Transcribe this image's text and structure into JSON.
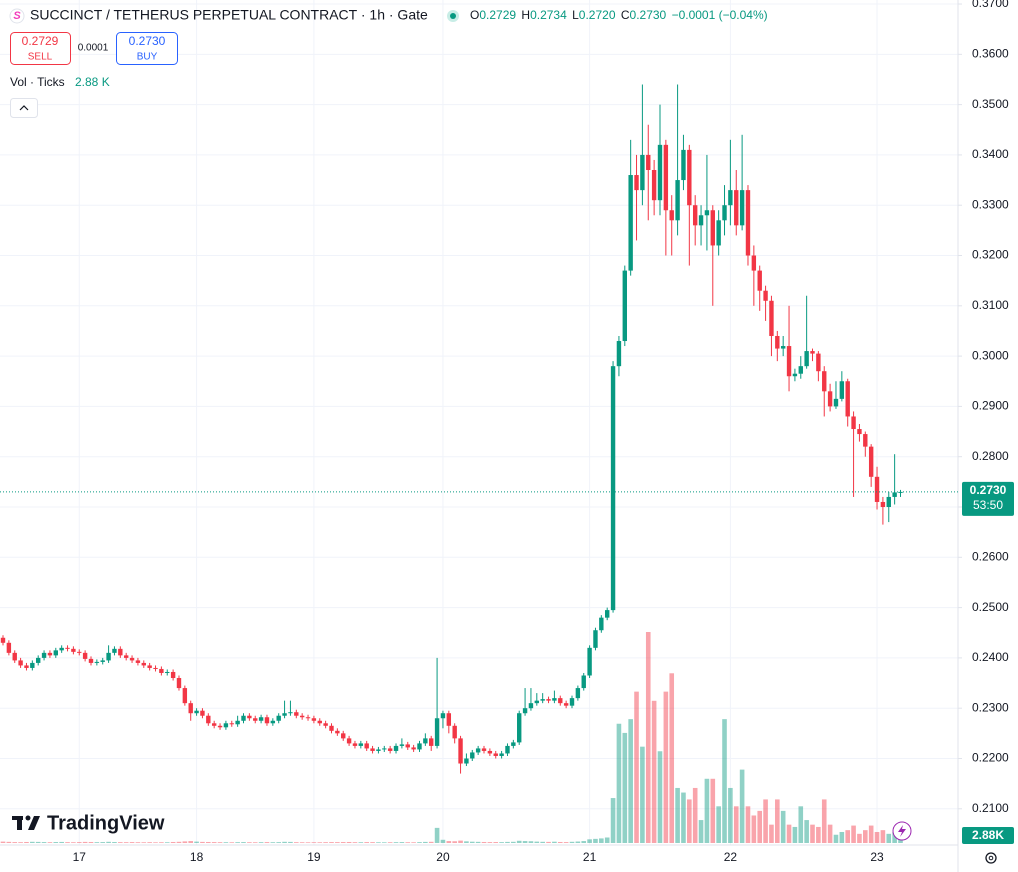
{
  "chart_data": {
    "type": "candlestick",
    "title": "SUCCINCT / TETHERUS PERPETUAL CONTRACT · 1h · Gate",
    "ohlc_legend": [
      {
        "key": "O",
        "value": "0.2729"
      },
      {
        "key": "H",
        "value": "0.2734"
      },
      {
        "key": "L",
        "value": "0.2720"
      },
      {
        "key": "C",
        "value": "0.2730"
      }
    ],
    "change": "−0.0001 (−0.04%)",
    "sell": {
      "price": "0.2729",
      "label": "SELL"
    },
    "spread": "0.0001",
    "buy": {
      "price": "0.2730",
      "label": "BUY"
    },
    "volume_legend": {
      "label": "Vol · Ticks",
      "value": "2.88 K"
    },
    "volume_axis_label": "2.88K",
    "last_price_label": "0.2730",
    "countdown": "53:50",
    "brand": "TradingView",
    "up_color": "#089981",
    "down_color": "#f23645",
    "grid": true,
    "categories": [
      null,
      null,
      null,
      null,
      null,
      null,
      null,
      null,
      null,
      null,
      null,
      null,
      null,
      "17",
      null,
      null,
      null,
      null,
      null,
      null,
      null,
      null,
      null,
      null,
      null,
      null,
      null,
      null,
      null,
      null,
      null,
      null,
      null,
      "18",
      null,
      null,
      null,
      null,
      null,
      null,
      null,
      null,
      null,
      null,
      null,
      null,
      null,
      null,
      null,
      null,
      null,
      null,
      null,
      "19",
      null,
      null,
      null,
      null,
      null,
      null,
      null,
      null,
      null,
      null,
      null,
      null,
      null,
      null,
      null,
      null,
      null,
      null,
      null,
      null,
      null,
      "20",
      null,
      null,
      null,
      null,
      null,
      null,
      null,
      null,
      null,
      null,
      null,
      null,
      null,
      null,
      null,
      null,
      null,
      null,
      null,
      null,
      null,
      null,
      null,
      null,
      "21",
      null,
      null,
      null,
      null,
      null,
      null,
      null,
      null,
      null,
      null,
      null,
      null,
      null,
      null,
      null,
      null,
      null,
      null,
      null,
      null,
      null,
      null,
      null,
      "22",
      null,
      null,
      null,
      null,
      null,
      null,
      null,
      null,
      null,
      null,
      null,
      null,
      null,
      null,
      null,
      null,
      null,
      null,
      null,
      null,
      null,
      null,
      null,
      null,
      "23",
      null,
      null,
      null,
      null
    ],
    "open": [
      0.244,
      0.243,
      0.241,
      0.2395,
      0.2385,
      0.238,
      0.239,
      0.24,
      0.241,
      0.2405,
      0.2415,
      0.242,
      0.2418,
      0.2412,
      0.241,
      0.2398,
      0.239,
      0.2392,
      0.2395,
      0.241,
      0.2418,
      0.2405,
      0.24,
      0.2395,
      0.239,
      0.2385,
      0.238,
      0.2378,
      0.237,
      0.2372,
      0.236,
      0.234,
      0.231,
      0.229,
      0.2295,
      0.2285,
      0.227,
      0.2265,
      0.2262,
      0.227,
      0.2268,
      0.2275,
      0.2285,
      0.228,
      0.2275,
      0.2282,
      0.227,
      0.2275,
      0.2285,
      0.229,
      0.2292,
      0.2285,
      0.2282,
      0.228,
      0.2275,
      0.227,
      0.2265,
      0.2255,
      0.225,
      0.224,
      0.223,
      0.2225,
      0.223,
      0.222,
      0.2215,
      0.2218,
      0.222,
      0.2215,
      0.2225,
      0.2228,
      0.2222,
      0.2218,
      0.223,
      0.224,
      0.2225,
      0.228,
      0.229,
      0.2265,
      0.224,
      0.219,
      0.22,
      0.2212,
      0.222,
      0.2215,
      0.221,
      0.2205,
      0.221,
      0.2225,
      0.2232,
      0.229,
      0.23,
      0.231,
      0.2315,
      0.2318,
      0.2315,
      0.232,
      0.231,
      0.2305,
      0.232,
      0.234,
      0.2365,
      0.242,
      0.2455,
      0.248,
      0.2495,
      0.298,
      0.303,
      0.317,
      0.336,
      0.333,
      0.34,
      0.337,
      0.331,
      0.342,
      0.329,
      0.327,
      0.335,
      0.341,
      0.33,
      0.326,
      0.328,
      0.329,
      0.322,
      0.327,
      0.33,
      0.333,
      0.326,
      0.333,
      0.32,
      0.317,
      0.313,
      0.311,
      0.304,
      0.3015,
      0.302,
      0.296,
      0.2965,
      0.298,
      0.301,
      0.3005,
      0.297,
      0.293,
      0.29,
      0.2915,
      0.295,
      0.288,
      0.2855,
      0.2845,
      0.282,
      0.276,
      0.271,
      0.27,
      0.272,
      0.2729
    ],
    "high": [
      0.2445,
      0.2435,
      0.2415,
      0.24,
      0.239,
      0.2395,
      0.2405,
      0.2415,
      0.2415,
      0.242,
      0.2425,
      0.2425,
      0.2423,
      0.2417,
      0.2415,
      0.2403,
      0.2397,
      0.24,
      0.2425,
      0.2423,
      0.2423,
      0.241,
      0.2405,
      0.24,
      0.2395,
      0.239,
      0.2385,
      0.2383,
      0.2377,
      0.2377,
      0.2365,
      0.2345,
      0.2315,
      0.23,
      0.23,
      0.229,
      0.2275,
      0.227,
      0.2275,
      0.2275,
      0.2285,
      0.229,
      0.229,
      0.2285,
      0.2287,
      0.2287,
      0.228,
      0.229,
      0.2315,
      0.2315,
      0.2297,
      0.229,
      0.2287,
      0.2285,
      0.228,
      0.2275,
      0.227,
      0.226,
      0.2255,
      0.2245,
      0.2235,
      0.2235,
      0.2235,
      0.2225,
      0.2223,
      0.2225,
      0.2225,
      0.223,
      0.224,
      0.2233,
      0.2227,
      0.2235,
      0.225,
      0.2245,
      0.24,
      0.2295,
      0.2295,
      0.227,
      0.2245,
      0.221,
      0.2217,
      0.2225,
      0.2225,
      0.222,
      0.2215,
      0.2215,
      0.223,
      0.2237,
      0.2295,
      0.234,
      0.234,
      0.233,
      0.233,
      0.2323,
      0.2335,
      0.2325,
      0.2315,
      0.2325,
      0.2345,
      0.237,
      0.2425,
      0.246,
      0.2485,
      0.25,
      0.299,
      0.304,
      0.318,
      0.343,
      0.34,
      0.354,
      0.346,
      0.339,
      0.35,
      0.343,
      0.332,
      0.354,
      0.344,
      0.342,
      0.332,
      0.33,
      0.34,
      0.33,
      0.329,
      0.334,
      0.343,
      0.337,
      0.344,
      0.334,
      0.322,
      0.318,
      0.314,
      0.312,
      0.305,
      0.304,
      0.31,
      0.2975,
      0.3,
      0.312,
      0.3015,
      0.301,
      0.298,
      0.2945,
      0.295,
      0.297,
      0.2955,
      0.289,
      0.2865,
      0.285,
      0.2825,
      0.278,
      0.272,
      0.273,
      0.2805,
      0.2734
    ],
    "low": [
      0.2425,
      0.2405,
      0.239,
      0.238,
      0.2375,
      0.2375,
      0.2385,
      0.2395,
      0.24,
      0.24,
      0.241,
      0.2413,
      0.2407,
      0.2405,
      0.2393,
      0.2385,
      0.2385,
      0.2387,
      0.239,
      0.2405,
      0.24,
      0.2395,
      0.239,
      0.2385,
      0.238,
      0.2375,
      0.2373,
      0.2365,
      0.2365,
      0.2355,
      0.2335,
      0.2305,
      0.2275,
      0.2285,
      0.228,
      0.2265,
      0.226,
      0.2257,
      0.2257,
      0.2263,
      0.2263,
      0.227,
      0.2275,
      0.227,
      0.227,
      0.2265,
      0.2265,
      0.227,
      0.228,
      0.2285,
      0.228,
      0.2277,
      0.2275,
      0.227,
      0.2265,
      0.226,
      0.225,
      0.2245,
      0.2235,
      0.2225,
      0.222,
      0.222,
      0.2215,
      0.221,
      0.221,
      0.2213,
      0.221,
      0.221,
      0.222,
      0.2217,
      0.2213,
      0.2213,
      0.2225,
      0.2215,
      0.222,
      0.226,
      0.225,
      0.223,
      0.217,
      0.2185,
      0.2195,
      0.2207,
      0.221,
      0.2205,
      0.22,
      0.22,
      0.2205,
      0.222,
      0.2227,
      0.2285,
      0.2295,
      0.2305,
      0.231,
      0.231,
      0.231,
      0.2305,
      0.23,
      0.23,
      0.2315,
      0.2335,
      0.236,
      0.2415,
      0.245,
      0.2475,
      0.249,
      0.296,
      0.302,
      0.316,
      0.323,
      0.33,
      0.327,
      0.328,
      0.328,
      0.32,
      0.32,
      0.324,
      0.333,
      0.318,
      0.322,
      0.322,
      0.321,
      0.31,
      0.32,
      0.324,
      0.326,
      0.324,
      0.325,
      0.318,
      0.31,
      0.309,
      0.307,
      0.3,
      0.299,
      0.3,
      0.293,
      0.295,
      0.2955,
      0.2975,
      0.299,
      0.295,
      0.288,
      0.289,
      0.2895,
      0.291,
      0.286,
      0.272,
      0.283,
      0.28,
      0.274,
      0.2695,
      0.2665,
      0.267,
      0.2705,
      0.272
    ],
    "close": [
      0.243,
      0.241,
      0.2395,
      0.2385,
      0.238,
      0.239,
      0.24,
      0.241,
      0.2405,
      0.2415,
      0.242,
      0.2418,
      0.2412,
      0.241,
      0.2398,
      0.239,
      0.2392,
      0.2395,
      0.241,
      0.2418,
      0.2405,
      0.24,
      0.2395,
      0.239,
      0.2385,
      0.238,
      0.2378,
      0.237,
      0.2372,
      0.236,
      0.234,
      0.231,
      0.229,
      0.2295,
      0.2285,
      0.227,
      0.2265,
      0.2262,
      0.227,
      0.2268,
      0.2275,
      0.2285,
      0.228,
      0.2275,
      0.2282,
      0.227,
      0.2275,
      0.2285,
      0.229,
      0.2292,
      0.2285,
      0.2282,
      0.228,
      0.2275,
      0.227,
      0.2265,
      0.2255,
      0.225,
      0.224,
      0.223,
      0.2225,
      0.223,
      0.222,
      0.2215,
      0.2218,
      0.222,
      0.2215,
      0.2225,
      0.2228,
      0.2222,
      0.2218,
      0.223,
      0.224,
      0.2225,
      0.228,
      0.229,
      0.2265,
      0.224,
      0.219,
      0.22,
      0.2212,
      0.222,
      0.2215,
      0.221,
      0.2205,
      0.221,
      0.2225,
      0.2232,
      0.229,
      0.23,
      0.231,
      0.2315,
      0.2318,
      0.2315,
      0.232,
      0.231,
      0.2305,
      0.232,
      0.234,
      0.2365,
      0.242,
      0.2455,
      0.248,
      0.2495,
      0.298,
      0.303,
      0.317,
      0.336,
      0.333,
      0.34,
      0.337,
      0.331,
      0.342,
      0.329,
      0.327,
      0.335,
      0.341,
      0.33,
      0.326,
      0.328,
      0.329,
      0.322,
      0.327,
      0.33,
      0.333,
      0.326,
      0.333,
      0.32,
      0.317,
      0.313,
      0.311,
      0.304,
      0.3015,
      0.302,
      0.296,
      0.2965,
      0.298,
      0.301,
      0.3005,
      0.297,
      0.293,
      0.29,
      0.2915,
      0.295,
      0.288,
      0.2855,
      0.2845,
      0.282,
      0.276,
      0.271,
      0.27,
      0.272,
      0.2729,
      0.273
    ],
    "volume": [
      300,
      250,
      200,
      180,
      220,
      260,
      240,
      200,
      180,
      210,
      230,
      190,
      170,
      200,
      240,
      220,
      180,
      200,
      260,
      210,
      190,
      180,
      200,
      170,
      160,
      180,
      150,
      170,
      160,
      220,
      260,
      350,
      420,
      300,
      240,
      220,
      200,
      180,
      170,
      160,
      180,
      200,
      170,
      160,
      180,
      200,
      170,
      190,
      260,
      240,
      180,
      160,
      150,
      170,
      160,
      180,
      200,
      190,
      210,
      220,
      180,
      170,
      200,
      190,
      160,
      150,
      170,
      180,
      200,
      170,
      160,
      190,
      240,
      260,
      3300,
      700,
      420,
      380,
      520,
      360,
      280,
      250,
      220,
      200,
      210,
      190,
      240,
      260,
      480,
      420,
      380,
      300,
      260,
      240,
      280,
      220,
      200,
      260,
      320,
      420,
      800,
      900,
      1000,
      1200,
      9800,
      26000,
      24000,
      27000,
      33000,
      21000,
      46000,
      31000,
      20000,
      33000,
      37000,
      12000,
      11000,
      9500,
      12000,
      5000,
      14000,
      14000,
      8000,
      27000,
      12000,
      8000,
      16000,
      8000,
      6000,
      7000,
      9500,
      4000,
      9500,
      7000,
      4000,
      3500,
      8000,
      5000,
      4000,
      3500,
      9500,
      4000,
      1800,
      2400,
      2800,
      3800,
      2000,
      2800,
      3800,
      2400,
      2800,
      2000,
      2400,
      2880
    ],
    "ylim": [
      0.2028,
      0.3708
    ],
    "yticks": [
      {
        "value": 0.21,
        "label": "0.2100"
      },
      {
        "value": 0.22,
        "label": "0.2200"
      },
      {
        "value": 0.23,
        "label": "0.2300"
      },
      {
        "value": 0.24,
        "label": "0.2400"
      },
      {
        "value": 0.25,
        "label": "0.2500"
      },
      {
        "value": 0.26,
        "label": "0.2600"
      },
      {
        "value": 0.27,
        "label": "0.2700"
      },
      {
        "value": 0.28,
        "label": "0.2800"
      },
      {
        "value": 0.29,
        "label": "0.2900"
      },
      {
        "value": 0.3,
        "label": "0.3000"
      },
      {
        "value": 0.31,
        "label": "0.3100"
      },
      {
        "value": 0.32,
        "label": "0.3200"
      },
      {
        "value": 0.33,
        "label": "0.3300"
      },
      {
        "value": 0.34,
        "label": "0.3400"
      },
      {
        "value": 0.35,
        "label": "0.3500"
      },
      {
        "value": 0.36,
        "label": "0.3600"
      },
      {
        "value": 0.37,
        "label": "0.3700"
      }
    ]
  }
}
